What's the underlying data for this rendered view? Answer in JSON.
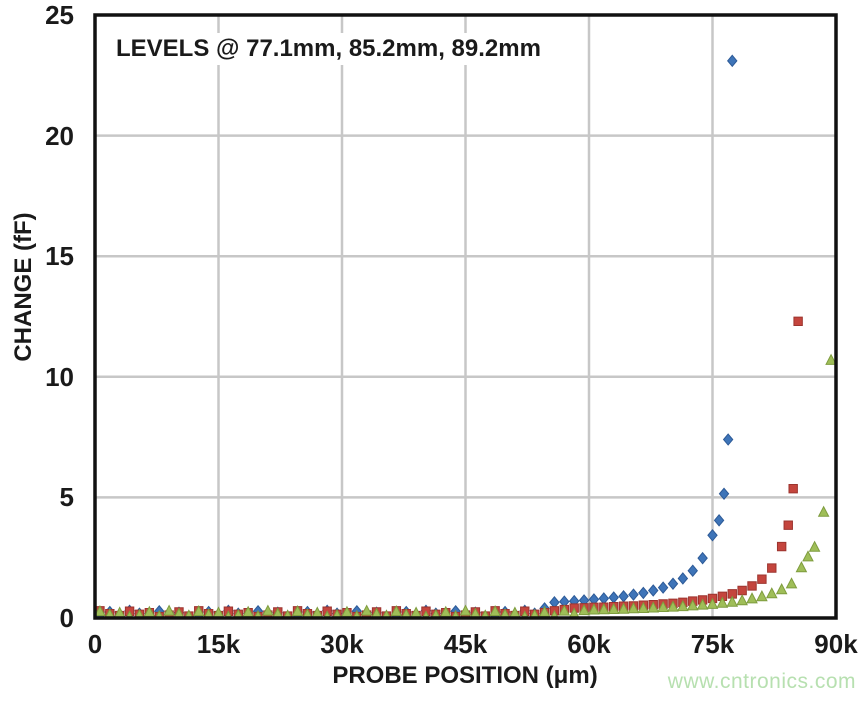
{
  "figure": {
    "background": "#ffffff",
    "frame_color": "#111111",
    "grid_color": "#c7c7c7"
  },
  "watermark": {
    "text": "www.cntronics.com",
    "color": "#b7e0b0"
  },
  "chart_data": {
    "type": "scatter",
    "title": "",
    "annotation": "LEVELS @ 77.1mm, 85.2mm, 89.2mm",
    "xlabel": "PROBE POSITION (μm)",
    "ylabel": "CHANGE (fF)",
    "xlim": [
      0,
      90000
    ],
    "ylim": [
      0,
      25
    ],
    "grid": true,
    "legend_position": "none",
    "x_ticks": [
      {
        "value": 0,
        "label": "0"
      },
      {
        "value": 15000,
        "label": "15k"
      },
      {
        "value": 30000,
        "label": "30k"
      },
      {
        "value": 45000,
        "label": "45k"
      },
      {
        "value": 60000,
        "label": "60k"
      },
      {
        "value": 75000,
        "label": "75k"
      },
      {
        "value": 90000,
        "label": "90k"
      }
    ],
    "y_ticks": [
      {
        "value": 0,
        "label": "0"
      },
      {
        "value": 5,
        "label": "5"
      },
      {
        "value": 10,
        "label": "10"
      },
      {
        "value": 15,
        "label": "15"
      },
      {
        "value": 20,
        "label": "20"
      },
      {
        "value": 25,
        "label": "25"
      }
    ],
    "series": [
      {
        "name": "level-77.1mm",
        "marker": "diamond",
        "color": "#3E74B8",
        "edge_color": "#2d5a97",
        "points": [
          [
            600,
            0.12
          ],
          [
            1800,
            0.25
          ],
          [
            3000,
            0.08
          ],
          [
            4200,
            0.3
          ],
          [
            5400,
            0.18
          ],
          [
            6600,
            0.1
          ],
          [
            7800,
            0.28
          ],
          [
            9000,
            0.15
          ],
          [
            10200,
            0.22
          ],
          [
            11400,
            0.06
          ],
          [
            12600,
            0.12
          ],
          [
            13800,
            0.25
          ],
          [
            15000,
            0.08
          ],
          [
            16200,
            0.3
          ],
          [
            17400,
            0.18
          ],
          [
            18600,
            0.1
          ],
          [
            19800,
            0.28
          ],
          [
            21000,
            0.15
          ],
          [
            22200,
            0.22
          ],
          [
            23400,
            0.06
          ],
          [
            24600,
            0.12
          ],
          [
            25800,
            0.25
          ],
          [
            27000,
            0.08
          ],
          [
            28200,
            0.3
          ],
          [
            29400,
            0.18
          ],
          [
            30600,
            0.1
          ],
          [
            31800,
            0.28
          ],
          [
            33000,
            0.15
          ],
          [
            34200,
            0.22
          ],
          [
            35400,
            0.06
          ],
          [
            36600,
            0.12
          ],
          [
            37800,
            0.25
          ],
          [
            39000,
            0.08
          ],
          [
            40200,
            0.3
          ],
          [
            41400,
            0.18
          ],
          [
            42600,
            0.1
          ],
          [
            43800,
            0.28
          ],
          [
            45000,
            0.15
          ],
          [
            46200,
            0.22
          ],
          [
            47400,
            0.06
          ],
          [
            48600,
            0.12
          ],
          [
            49800,
            0.25
          ],
          [
            51000,
            0.08
          ],
          [
            52200,
            0.3
          ],
          [
            53400,
            0.18
          ],
          [
            54600,
            0.4
          ],
          [
            55800,
            0.65
          ],
          [
            57000,
            0.68
          ],
          [
            58200,
            0.7
          ],
          [
            59400,
            0.73
          ],
          [
            60600,
            0.77
          ],
          [
            61800,
            0.81
          ],
          [
            63000,
            0.85
          ],
          [
            64200,
            0.9
          ],
          [
            65400,
            0.97
          ],
          [
            66600,
            1.04
          ],
          [
            67800,
            1.14
          ],
          [
            69000,
            1.26
          ],
          [
            70200,
            1.42
          ],
          [
            71400,
            1.64
          ],
          [
            72600,
            1.96
          ],
          [
            73800,
            2.48
          ],
          [
            75000,
            3.43
          ],
          [
            75800,
            4.05
          ],
          [
            76400,
            5.15
          ],
          [
            76900,
            7.4
          ],
          [
            77400,
            23.1
          ]
        ]
      },
      {
        "name": "level-85.2mm",
        "marker": "square",
        "color": "#C4453D",
        "edge_color": "#9c342e",
        "points": [
          [
            600,
            0.3
          ],
          [
            1800,
            0.18
          ],
          [
            3000,
            0.1
          ],
          [
            4200,
            0.28
          ],
          [
            5400,
            0.15
          ],
          [
            6600,
            0.22
          ],
          [
            7800,
            0.06
          ],
          [
            9000,
            0.12
          ],
          [
            10200,
            0.25
          ],
          [
            11400,
            0.08
          ],
          [
            12600,
            0.3
          ],
          [
            13800,
            0.18
          ],
          [
            15000,
            0.1
          ],
          [
            16200,
            0.28
          ],
          [
            17400,
            0.15
          ],
          [
            18600,
            0.22
          ],
          [
            19800,
            0.06
          ],
          [
            21000,
            0.12
          ],
          [
            22200,
            0.25
          ],
          [
            23400,
            0.08
          ],
          [
            24600,
            0.3
          ],
          [
            25800,
            0.18
          ],
          [
            27000,
            0.1
          ],
          [
            28200,
            0.28
          ],
          [
            29400,
            0.15
          ],
          [
            30600,
            0.22
          ],
          [
            31800,
            0.06
          ],
          [
            33000,
            0.12
          ],
          [
            34200,
            0.25
          ],
          [
            35400,
            0.08
          ],
          [
            36600,
            0.3
          ],
          [
            37800,
            0.18
          ],
          [
            39000,
            0.1
          ],
          [
            40200,
            0.28
          ],
          [
            41400,
            0.15
          ],
          [
            42600,
            0.22
          ],
          [
            43800,
            0.06
          ],
          [
            45000,
            0.12
          ],
          [
            46200,
            0.25
          ],
          [
            47400,
            0.08
          ],
          [
            48600,
            0.3
          ],
          [
            49800,
            0.18
          ],
          [
            51000,
            0.1
          ],
          [
            52200,
            0.28
          ],
          [
            53400,
            0.15
          ],
          [
            54600,
            0.22
          ],
          [
            55800,
            0.3
          ],
          [
            57000,
            0.35
          ],
          [
            58200,
            0.41
          ],
          [
            59400,
            0.42
          ],
          [
            60600,
            0.44
          ],
          [
            61800,
            0.45
          ],
          [
            63000,
            0.47
          ],
          [
            64200,
            0.49
          ],
          [
            65400,
            0.5
          ],
          [
            66600,
            0.53
          ],
          [
            67800,
            0.55
          ],
          [
            69000,
            0.58
          ],
          [
            70200,
            0.61
          ],
          [
            71400,
            0.65
          ],
          [
            72600,
            0.7
          ],
          [
            73800,
            0.75
          ],
          [
            75000,
            0.81
          ],
          [
            76200,
            0.9
          ],
          [
            77400,
            1.0
          ],
          [
            78600,
            1.14
          ],
          [
            79800,
            1.33
          ],
          [
            81000,
            1.61
          ],
          [
            82200,
            2.07
          ],
          [
            83400,
            2.96
          ],
          [
            84200,
            3.85
          ],
          [
            84800,
            5.36
          ],
          [
            85400,
            12.3
          ]
        ]
      },
      {
        "name": "level-89.2mm",
        "marker": "triangle",
        "color": "#9FBE58",
        "edge_color": "#7e9c3e",
        "points": [
          [
            600,
            0.28
          ],
          [
            1800,
            0.15
          ],
          [
            3000,
            0.22
          ],
          [
            4200,
            0.06
          ],
          [
            5400,
            0.12
          ],
          [
            6600,
            0.25
          ],
          [
            7800,
            0.08
          ],
          [
            9000,
            0.3
          ],
          [
            10200,
            0.18
          ],
          [
            11400,
            0.1
          ],
          [
            12600,
            0.28
          ],
          [
            13800,
            0.15
          ],
          [
            15000,
            0.22
          ],
          [
            16200,
            0.06
          ],
          [
            17400,
            0.12
          ],
          [
            18600,
            0.25
          ],
          [
            19800,
            0.08
          ],
          [
            21000,
            0.3
          ],
          [
            22200,
            0.18
          ],
          [
            23400,
            0.1
          ],
          [
            24600,
            0.28
          ],
          [
            25800,
            0.15
          ],
          [
            27000,
            0.22
          ],
          [
            28200,
            0.06
          ],
          [
            29400,
            0.12
          ],
          [
            30600,
            0.25
          ],
          [
            31800,
            0.08
          ],
          [
            33000,
            0.3
          ],
          [
            34200,
            0.18
          ],
          [
            35400,
            0.1
          ],
          [
            36600,
            0.28
          ],
          [
            37800,
            0.15
          ],
          [
            39000,
            0.22
          ],
          [
            40200,
            0.06
          ],
          [
            41400,
            0.12
          ],
          [
            42600,
            0.25
          ],
          [
            43800,
            0.08
          ],
          [
            45000,
            0.3
          ],
          [
            46200,
            0.18
          ],
          [
            47400,
            0.1
          ],
          [
            48600,
            0.28
          ],
          [
            49800,
            0.15
          ],
          [
            51000,
            0.22
          ],
          [
            52200,
            0.06
          ],
          [
            53400,
            0.12
          ],
          [
            54600,
            0.25
          ],
          [
            55800,
            0.08
          ],
          [
            57000,
            0.3
          ],
          [
            58200,
            0.18
          ],
          [
            59400,
            0.32
          ],
          [
            60600,
            0.35
          ],
          [
            61800,
            0.36
          ],
          [
            63000,
            0.37
          ],
          [
            64200,
            0.38
          ],
          [
            65400,
            0.4
          ],
          [
            66600,
            0.41
          ],
          [
            67800,
            0.43
          ],
          [
            69000,
            0.45
          ],
          [
            70200,
            0.47
          ],
          [
            71400,
            0.49
          ],
          [
            72600,
            0.52
          ],
          [
            73800,
            0.55
          ],
          [
            75000,
            0.58
          ],
          [
            76200,
            0.63
          ],
          [
            77400,
            0.67
          ],
          [
            78600,
            0.73
          ],
          [
            79800,
            0.81
          ],
          [
            81000,
            0.9
          ],
          [
            82200,
            1.02
          ],
          [
            83400,
            1.19
          ],
          [
            84600,
            1.43
          ],
          [
            85800,
            2.1
          ],
          [
            86600,
            2.55
          ],
          [
            87400,
            2.95
          ],
          [
            88500,
            4.4
          ],
          [
            89400,
            10.7
          ]
        ]
      }
    ]
  }
}
